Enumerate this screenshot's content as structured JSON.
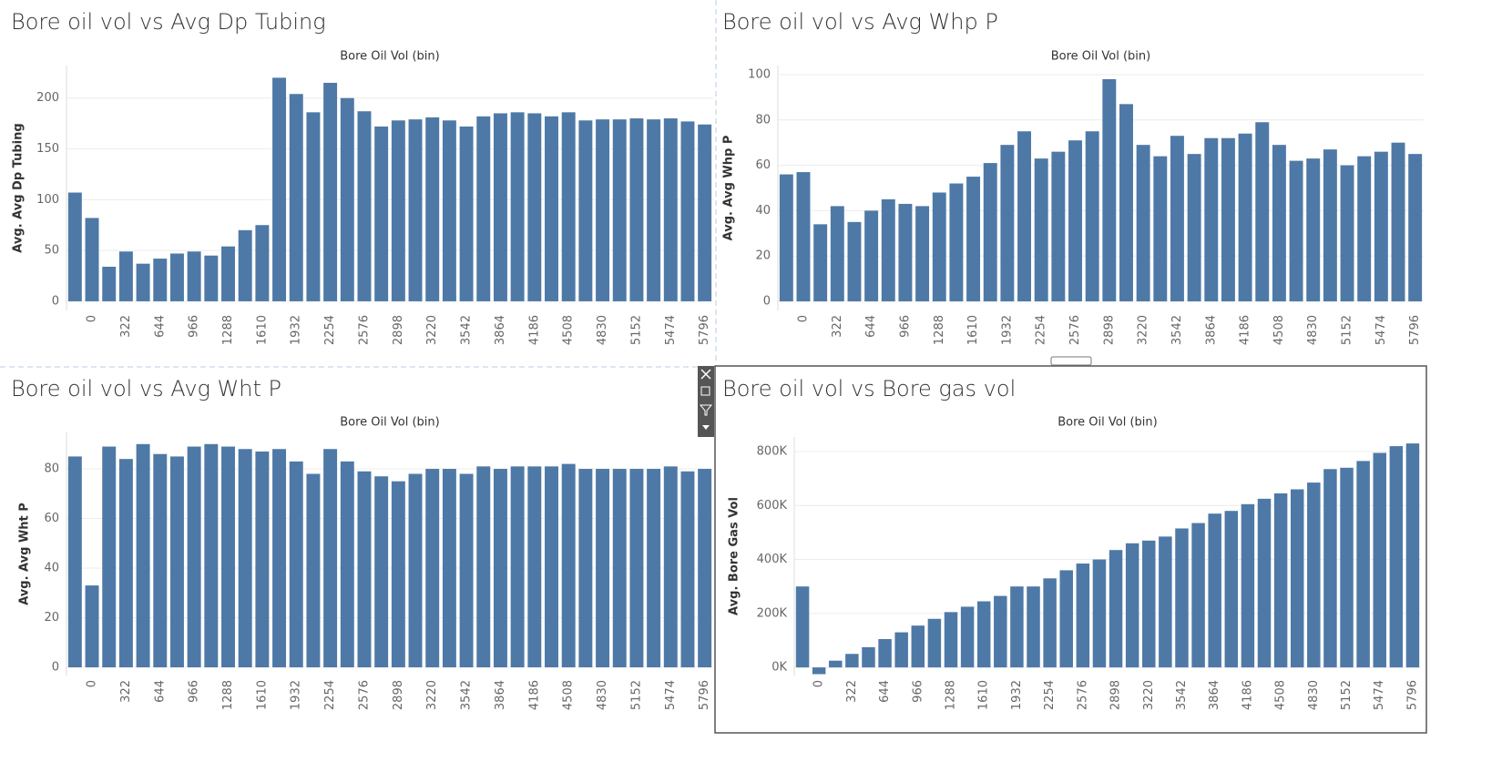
{
  "chart_data": [
    {
      "type": "bar",
      "title": "Bore oil vol vs Avg Dp Tubing",
      "x_label": "Bore Oil Vol (bin)",
      "y_label": "Avg. Avg Dp Tubing",
      "categories": [
        null,
        0,
        null,
        322,
        null,
        644,
        null,
        966,
        null,
        1288,
        null,
        1610,
        null,
        1932,
        null,
        2254,
        null,
        2576,
        null,
        2898,
        null,
        3220,
        null,
        3542,
        null,
        3864,
        null,
        4186,
        null,
        4508,
        null,
        4830,
        null,
        5152,
        null,
        5474,
        null,
        5796
      ],
      "values": [
        107,
        82,
        34,
        49,
        37,
        42,
        47,
        49,
        45,
        54,
        70,
        75,
        220,
        204,
        186,
        215,
        200,
        187,
        172,
        178,
        179,
        181,
        178,
        172,
        182,
        185,
        186,
        185,
        182,
        186,
        178,
        179,
        179,
        180,
        179,
        180,
        177,
        174
      ],
      "color": "#4e79a7",
      "ylim": [
        -9,
        232
      ],
      "yticks": [
        0,
        50,
        100,
        150,
        200
      ],
      "grid": true
    },
    {
      "type": "bar",
      "title": "Bore oil vol vs Avg Whp P",
      "x_label": "Bore Oil Vol (bin)",
      "y_label": "Avg. Avg Whp P",
      "categories": [
        null,
        0,
        null,
        322,
        null,
        644,
        null,
        966,
        null,
        1288,
        null,
        1610,
        null,
        1932,
        null,
        2254,
        null,
        2576,
        null,
        2898,
        null,
        3220,
        null,
        3542,
        null,
        3864,
        null,
        4186,
        null,
        4508,
        null,
        4830,
        null,
        5152,
        null,
        5474,
        null,
        5796
      ],
      "values": [
        56,
        57,
        34,
        42,
        35,
        40,
        45,
        43,
        42,
        48,
        52,
        55,
        61,
        69,
        75,
        63,
        66,
        71,
        75,
        98,
        87,
        69,
        64,
        73,
        65,
        72,
        72,
        74,
        79,
        69,
        62,
        63,
        67,
        60,
        64,
        66,
        70,
        65
      ],
      "color": "#4e79a7",
      "ylim": [
        -4,
        104
      ],
      "yticks": [
        0,
        20,
        40,
        60,
        80,
        100
      ],
      "grid": true
    },
    {
      "type": "bar",
      "title": "Bore oil vol vs Avg Wht P",
      "x_label": "Bore Oil Vol (bin)",
      "y_label": "Avg. Avg Wht P",
      "categories": [
        null,
        0,
        null,
        322,
        null,
        644,
        null,
        966,
        null,
        1288,
        null,
        1610,
        null,
        1932,
        null,
        2254,
        null,
        2576,
        null,
        2898,
        null,
        3220,
        null,
        3542,
        null,
        3864,
        null,
        4186,
        null,
        4508,
        null,
        4830,
        null,
        5152,
        null,
        5474,
        null,
        5796
      ],
      "values": [
        85,
        33,
        89,
        84,
        90,
        86,
        85,
        89,
        90,
        89,
        88,
        87,
        88,
        83,
        78,
        88,
        83,
        79,
        77,
        75,
        78,
        80,
        80,
        78,
        81,
        80,
        81,
        81,
        81,
        82,
        80,
        80,
        80,
        80,
        80,
        81,
        79,
        80
      ],
      "color": "#4e79a7",
      "ylim": [
        -3.3,
        94.7
      ],
      "yticks": [
        0,
        20,
        40,
        60,
        80
      ],
      "grid": true
    },
    {
      "type": "bar",
      "title": "Bore oil vol vs Bore gas vol",
      "x_label": "Bore Oil Vol (bin)",
      "y_label": "Avg. Bore Gas Vol",
      "categories": [
        null,
        0,
        null,
        322,
        null,
        644,
        null,
        966,
        null,
        1288,
        null,
        1610,
        null,
        1932,
        null,
        2254,
        null,
        2576,
        null,
        2898,
        null,
        3220,
        null,
        3542,
        null,
        3864,
        null,
        4186,
        null,
        4508,
        null,
        4830,
        null,
        5152,
        null,
        5474,
        null,
        5796
      ],
      "values": [
        300000,
        -25000,
        25000,
        50000,
        75000,
        105000,
        130000,
        155000,
        180000,
        205000,
        225000,
        245000,
        265000,
        300000,
        300000,
        330000,
        360000,
        385000,
        400000,
        435000,
        460000,
        470000,
        485000,
        515000,
        535000,
        570000,
        580000,
        605000,
        625000,
        645000,
        660000,
        685000,
        735000,
        740000,
        765000,
        795000,
        820000,
        830000
      ],
      "color": "#4e79a7",
      "ylim": [
        -30000,
        854000
      ],
      "yticks": [
        {
          "value": 0,
          "label": "0K"
        },
        {
          "value": 200000,
          "label": "200K"
        },
        {
          "value": 400000,
          "label": "400K"
        },
        {
          "value": 600000,
          "label": "600K"
        },
        {
          "value": 800000,
          "label": "800K"
        }
      ],
      "grid": true
    }
  ]
}
